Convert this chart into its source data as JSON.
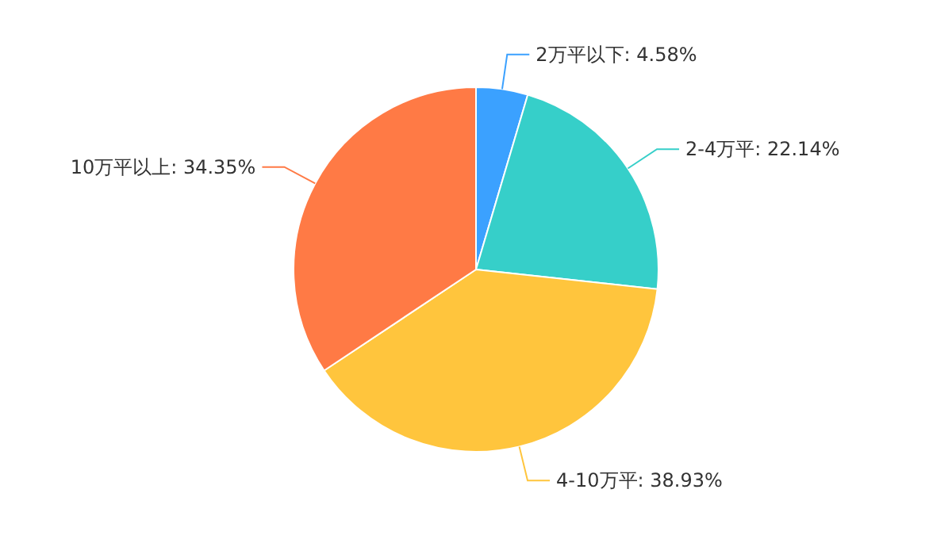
{
  "chart_data": {
    "type": "pie",
    "categories": [
      "2万平以下",
      "2-4万平",
      "4-10万平",
      "10万平以上"
    ],
    "values": [
      4.58,
      22.14,
      38.93,
      34.35
    ],
    "value_labels": [
      "4.58%",
      "22.14%",
      "38.93%",
      "34.35%"
    ],
    "colors": [
      "#3ba1ff",
      "#36cfc9",
      "#ffc53d",
      "#ff7a45"
    ]
  }
}
